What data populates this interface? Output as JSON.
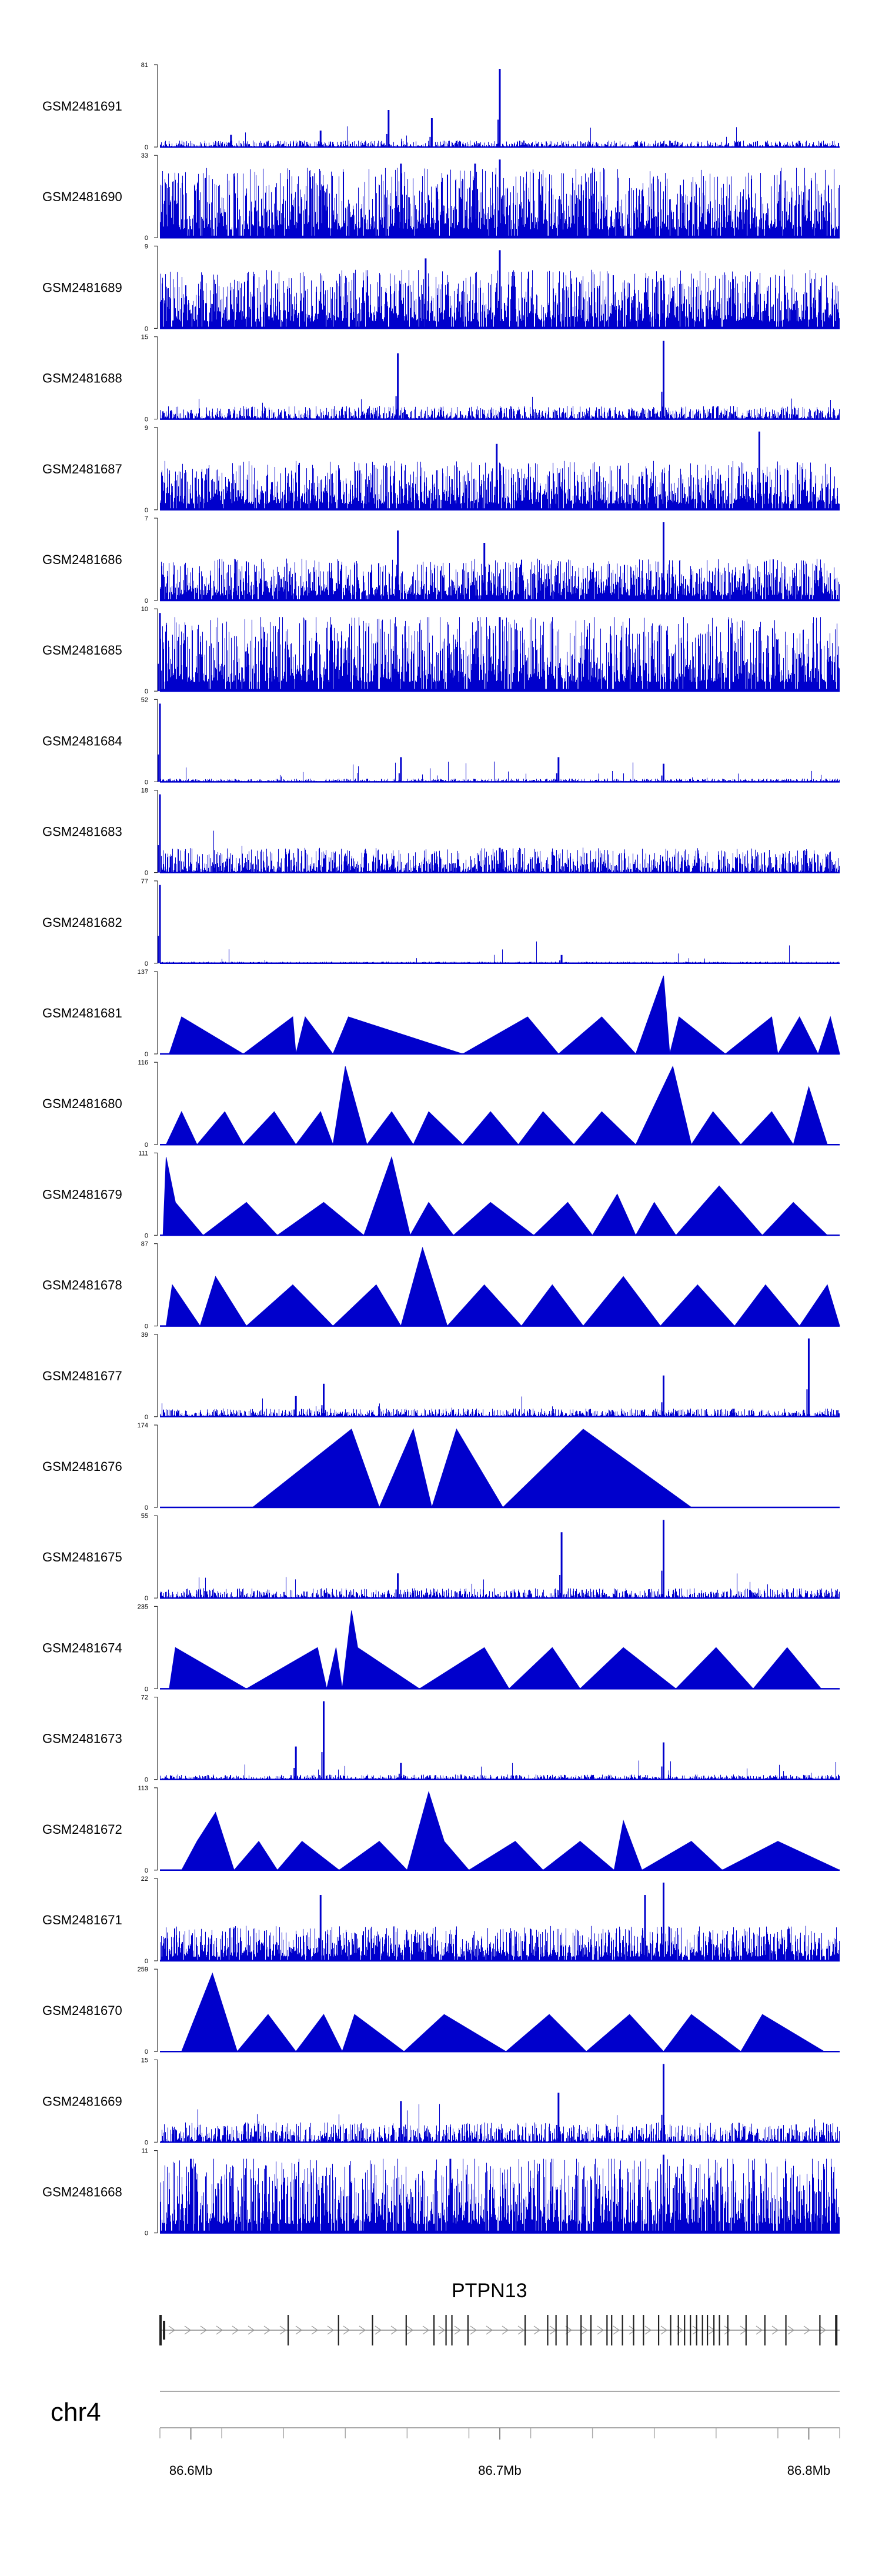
{
  "chart_data": {
    "type": "area",
    "title": "",
    "xlabel": "",
    "ylabel": "",
    "region": {
      "chromosome": "chr4",
      "start": 86.59,
      "end": 86.81,
      "unit": "Mb"
    },
    "x_ticks": [
      "86.6Mb",
      "86.7Mb",
      "86.8Mb"
    ],
    "x_tick_values": [
      86.6,
      86.7,
      86.8
    ],
    "color": "#0000cc",
    "tracks": [
      {
        "name": "GSM2481691",
        "ymax": "81",
        "ymin": "0",
        "style": "spiky",
        "level": 0.04,
        "peaks": [
          {
            "x": 86.7,
            "h": 0.95
          },
          {
            "x": 86.664,
            "h": 0.45
          },
          {
            "x": 86.613,
            "h": 0.15
          },
          {
            "x": 86.642,
            "h": 0.2
          },
          {
            "x": 86.678,
            "h": 0.35
          },
          {
            "x": 86.7,
            "h": 0.55
          }
        ]
      },
      {
        "name": "GSM2481690",
        "ymax": "33",
        "ymin": "0",
        "style": "dense",
        "level": 0.5,
        "peaks": [
          {
            "x": 86.7,
            "h": 0.95
          },
          {
            "x": 86.692,
            "h": 0.9
          },
          {
            "x": 86.668,
            "h": 0.9
          }
        ]
      },
      {
        "name": "GSM2481689",
        "ymax": "9",
        "ymin": "0",
        "style": "dense",
        "level": 0.42,
        "peaks": [
          {
            "x": 86.7,
            "h": 0.95
          },
          {
            "x": 86.676,
            "h": 0.85
          }
        ]
      },
      {
        "name": "GSM2481688",
        "ymax": "15",
        "ymin": "0",
        "style": "spiky",
        "level": 0.08,
        "peaks": [
          {
            "x": 86.753,
            "h": 0.95
          },
          {
            "x": 86.667,
            "h": 0.8
          }
        ]
      },
      {
        "name": "GSM2481687",
        "ymax": "9",
        "ymin": "0",
        "style": "dense",
        "level": 0.35,
        "peaks": [
          {
            "x": 86.784,
            "h": 0.95
          },
          {
            "x": 86.699,
            "h": 0.8
          }
        ]
      },
      {
        "name": "GSM2481686",
        "ymax": "7",
        "ymin": "0",
        "style": "dense",
        "level": 0.3,
        "peaks": [
          {
            "x": 86.753,
            "h": 0.95
          },
          {
            "x": 86.667,
            "h": 0.85
          },
          {
            "x": 86.695,
            "h": 0.7
          }
        ]
      },
      {
        "name": "GSM2481685",
        "ymax": "10",
        "ymin": "0",
        "style": "dense",
        "level": 0.55,
        "peaks": [
          {
            "x": 86.59,
            "h": 0.95
          },
          {
            "x": 86.7,
            "h": 0.9
          }
        ]
      },
      {
        "name": "GSM2481684",
        "ymax": "52",
        "ymin": "0",
        "style": "spiky",
        "level": 0.02,
        "peaks": [
          {
            "x": 86.59,
            "h": 0.95
          },
          {
            "x": 86.668,
            "h": 0.3
          },
          {
            "x": 86.719,
            "h": 0.3
          },
          {
            "x": 86.753,
            "h": 0.22
          }
        ]
      },
      {
        "name": "GSM2481683",
        "ymax": "18",
        "ymin": "0",
        "style": "spiky",
        "level": 0.15,
        "peaks": [
          {
            "x": 86.59,
            "h": 0.95
          },
          {
            "x": 86.7,
            "h": 0.3
          }
        ]
      },
      {
        "name": "GSM2481682",
        "ymax": "77",
        "ymin": "0",
        "style": "spiky",
        "level": 0.01,
        "peaks": [
          {
            "x": 86.59,
            "h": 0.95
          },
          {
            "x": 86.72,
            "h": 0.1
          }
        ]
      },
      {
        "name": "GSM2481681",
        "ymax": "137",
        "ymin": "0",
        "style": "tri",
        "verts": [
          [
            86.593,
            0
          ],
          [
            86.597,
            0.45
          ],
          [
            86.617,
            0
          ],
          [
            86.633,
            0.45
          ],
          [
            86.634,
            0
          ],
          [
            86.637,
            0.45
          ],
          [
            86.646,
            0
          ],
          [
            86.651,
            0.45
          ],
          [
            86.688,
            0
          ],
          [
            86.709,
            0.45
          ],
          [
            86.719,
            0
          ],
          [
            86.733,
            0.45
          ],
          [
            86.744,
            0
          ],
          [
            86.753,
            0.95
          ],
          [
            86.755,
            0
          ],
          [
            86.758,
            0.45
          ],
          [
            86.773,
            0
          ],
          [
            86.788,
            0.45
          ],
          [
            86.79,
            0
          ],
          [
            86.797,
            0.45
          ],
          [
            86.803,
            0
          ],
          [
            86.807,
            0.45
          ],
          [
            86.81,
            0
          ]
        ]
      },
      {
        "name": "GSM2481680",
        "ymax": "116",
        "ymin": "0",
        "style": "tri",
        "verts": [
          [
            86.592,
            0
          ],
          [
            86.597,
            0.4
          ],
          [
            86.602,
            0
          ],
          [
            86.611,
            0.4
          ],
          [
            86.617,
            0
          ],
          [
            86.627,
            0.4
          ],
          [
            86.634,
            0
          ],
          [
            86.642,
            0.4
          ],
          [
            86.646,
            0
          ],
          [
            86.65,
            0.95
          ],
          [
            86.657,
            0
          ],
          [
            86.665,
            0.4
          ],
          [
            86.672,
            0
          ],
          [
            86.677,
            0.4
          ],
          [
            86.688,
            0
          ],
          [
            86.697,
            0.4
          ],
          [
            86.706,
            0
          ],
          [
            86.714,
            0.4
          ],
          [
            86.724,
            0
          ],
          [
            86.733,
            0.4
          ],
          [
            86.744,
            0
          ],
          [
            86.756,
            0.95
          ],
          [
            86.762,
            0
          ],
          [
            86.769,
            0.4
          ],
          [
            86.778,
            0
          ],
          [
            86.788,
            0.4
          ],
          [
            86.795,
            0
          ],
          [
            86.8,
            0.7
          ],
          [
            86.806,
            0
          ]
        ]
      },
      {
        "name": "GSM2481679",
        "ymax": "111",
        "ymin": "0",
        "style": "tri",
        "verts": [
          [
            86.591,
            0
          ],
          [
            86.592,
            0.95
          ],
          [
            86.595,
            0.4
          ],
          [
            86.604,
            0
          ],
          [
            86.618,
            0.4
          ],
          [
            86.628,
            0
          ],
          [
            86.643,
            0.4
          ],
          [
            86.656,
            0
          ],
          [
            86.665,
            0.95
          ],
          [
            86.671,
            0
          ],
          [
            86.677,
            0.4
          ],
          [
            86.685,
            0
          ],
          [
            86.697,
            0.4
          ],
          [
            86.711,
            0
          ],
          [
            86.722,
            0.4
          ],
          [
            86.73,
            0
          ],
          [
            86.738,
            0.5
          ],
          [
            86.744,
            0
          ],
          [
            86.75,
            0.4
          ],
          [
            86.757,
            0
          ],
          [
            86.771,
            0.6
          ],
          [
            86.785,
            0
          ],
          [
            86.795,
            0.4
          ],
          [
            86.806,
            0
          ]
        ]
      },
      {
        "name": "GSM2481678",
        "ymax": "87",
        "ymin": "0",
        "style": "tri",
        "verts": [
          [
            86.592,
            0
          ],
          [
            86.594,
            0.5
          ],
          [
            86.603,
            0
          ],
          [
            86.608,
            0.6
          ],
          [
            86.618,
            0
          ],
          [
            86.633,
            0.5
          ],
          [
            86.646,
            0
          ],
          [
            86.66,
            0.5
          ],
          [
            86.668,
            0
          ],
          [
            86.675,
            0.95
          ],
          [
            86.683,
            0
          ],
          [
            86.695,
            0.5
          ],
          [
            86.707,
            0
          ],
          [
            86.717,
            0.5
          ],
          [
            86.727,
            0
          ],
          [
            86.74,
            0.6
          ],
          [
            86.752,
            0
          ],
          [
            86.764,
            0.5
          ],
          [
            86.776,
            0
          ],
          [
            86.786,
            0.5
          ],
          [
            86.797,
            0
          ],
          [
            86.806,
            0.5
          ],
          [
            86.81,
            0
          ]
        ]
      },
      {
        "name": "GSM2481677",
        "ymax": "39",
        "ymin": "0",
        "style": "spiky",
        "level": 0.05,
        "peaks": [
          {
            "x": 86.8,
            "h": 0.95
          },
          {
            "x": 86.753,
            "h": 0.5
          },
          {
            "x": 86.643,
            "h": 0.4
          },
          {
            "x": 86.634,
            "h": 0.25
          }
        ]
      },
      {
        "name": "GSM2481676",
        "ymax": "174",
        "ymin": "0",
        "style": "tri",
        "verts": [
          [
            86.62,
            0
          ],
          [
            86.652,
            0.95
          ],
          [
            86.661,
            0
          ],
          [
            86.672,
            0.95
          ],
          [
            86.678,
            0
          ],
          [
            86.686,
            0.95
          ],
          [
            86.701,
            0
          ],
          [
            86.727,
            0.95
          ],
          [
            86.762,
            0
          ]
        ]
      },
      {
        "name": "GSM2481675",
        "ymax": "55",
        "ymin": "0",
        "style": "spiky",
        "level": 0.06,
        "peaks": [
          {
            "x": 86.753,
            "h": 0.95
          },
          {
            "x": 86.72,
            "h": 0.8
          },
          {
            "x": 86.667,
            "h": 0.3
          }
        ]
      },
      {
        "name": "GSM2481674",
        "ymax": "235",
        "ymin": "0",
        "style": "tri",
        "verts": [
          [
            86.593,
            0
          ],
          [
            86.595,
            0.5
          ],
          [
            86.618,
            0
          ],
          [
            86.641,
            0.5
          ],
          [
            86.644,
            0
          ],
          [
            86.647,
            0.5
          ],
          [
            86.649,
            0
          ],
          [
            86.652,
            0.95
          ],
          [
            86.654,
            0.5
          ],
          [
            86.674,
            0
          ],
          [
            86.695,
            0.5
          ],
          [
            86.703,
            0
          ],
          [
            86.717,
            0.5
          ],
          [
            86.726,
            0
          ],
          [
            86.74,
            0.5
          ],
          [
            86.757,
            0
          ],
          [
            86.77,
            0.5
          ],
          [
            86.782,
            0
          ],
          [
            86.793,
            0.5
          ],
          [
            86.804,
            0
          ]
        ]
      },
      {
        "name": "GSM2481673",
        "ymax": "72",
        "ymin": "0",
        "style": "spiky",
        "level": 0.03,
        "peaks": [
          {
            "x": 86.643,
            "h": 0.95
          },
          {
            "x": 86.634,
            "h": 0.4
          },
          {
            "x": 86.753,
            "h": 0.45
          },
          {
            "x": 86.668,
            "h": 0.2
          }
        ]
      },
      {
        "name": "GSM2481672",
        "ymax": "113",
        "ymin": "0",
        "style": "tri",
        "verts": [
          [
            86.597,
            0
          ],
          [
            86.602,
            0.35
          ],
          [
            86.608,
            0.7
          ],
          [
            86.614,
            0
          ],
          [
            86.622,
            0.35
          ],
          [
            86.628,
            0
          ],
          [
            86.636,
            0.35
          ],
          [
            86.648,
            0
          ],
          [
            86.661,
            0.35
          ],
          [
            86.67,
            0
          ],
          [
            86.677,
            0.95
          ],
          [
            86.682,
            0.35
          ],
          [
            86.69,
            0
          ],
          [
            86.705,
            0.35
          ],
          [
            86.714,
            0
          ],
          [
            86.726,
            0.35
          ],
          [
            86.737,
            0
          ],
          [
            86.74,
            0.6
          ],
          [
            86.746,
            0
          ],
          [
            86.762,
            0.35
          ],
          [
            86.772,
            0
          ],
          [
            86.79,
            0.35
          ],
          [
            86.81,
            0
          ]
        ]
      },
      {
        "name": "GSM2481671",
        "ymax": "22",
        "ymin": "0",
        "style": "dense",
        "level": 0.25,
        "peaks": [
          {
            "x": 86.753,
            "h": 0.95
          },
          {
            "x": 86.642,
            "h": 0.8
          },
          {
            "x": 86.747,
            "h": 0.8
          }
        ]
      },
      {
        "name": "GSM2481670",
        "ymax": "259",
        "ymin": "0",
        "style": "tri",
        "verts": [
          [
            86.597,
            0
          ],
          [
            86.607,
            0.95
          ],
          [
            86.615,
            0
          ],
          [
            86.625,
            0.45
          ],
          [
            86.634,
            0
          ],
          [
            86.643,
            0.45
          ],
          [
            86.649,
            0
          ],
          [
            86.653,
            0.45
          ],
          [
            86.669,
            0
          ],
          [
            86.682,
            0.45
          ],
          [
            86.702,
            0
          ],
          [
            86.716,
            0.45
          ],
          [
            86.728,
            0
          ],
          [
            86.742,
            0.45
          ],
          [
            86.753,
            0
          ],
          [
            86.762,
            0.45
          ],
          [
            86.778,
            0
          ],
          [
            86.785,
            0.45
          ],
          [
            86.805,
            0
          ]
        ]
      },
      {
        "name": "GSM2481669",
        "ymax": "15",
        "ymin": "0",
        "style": "spiky",
        "level": 0.12,
        "peaks": [
          {
            "x": 86.753,
            "h": 0.95
          },
          {
            "x": 86.719,
            "h": 0.6
          },
          {
            "x": 86.668,
            "h": 0.5
          }
        ]
      },
      {
        "name": "GSM2481668",
        "ymax": "11",
        "ymin": "0",
        "style": "dense",
        "level": 0.55,
        "peaks": [
          {
            "x": 86.753,
            "h": 0.95
          },
          {
            "x": 86.6,
            "h": 0.9
          },
          {
            "x": 86.684,
            "h": 0.9
          }
        ]
      }
    ],
    "gene": {
      "name": "PTPN13",
      "start": 86.59,
      "end": 86.81,
      "strand": "+",
      "exons": [
        86.5902,
        86.6315,
        86.6478,
        86.6588,
        86.6697,
        86.6787,
        86.6826,
        86.6845,
        86.6897,
        86.7082,
        86.7155,
        86.7182,
        86.7218,
        86.7263,
        86.7295,
        86.7347,
        86.7362,
        86.7397,
        86.7433,
        86.7465,
        86.7514,
        86.7553,
        86.7578,
        86.7598,
        86.7617,
        86.7637,
        86.7656,
        86.7672,
        86.7693,
        86.7711,
        86.7738,
        86.7797,
        86.7858,
        86.7926,
        86.8036,
        86.8089
      ]
    }
  }
}
